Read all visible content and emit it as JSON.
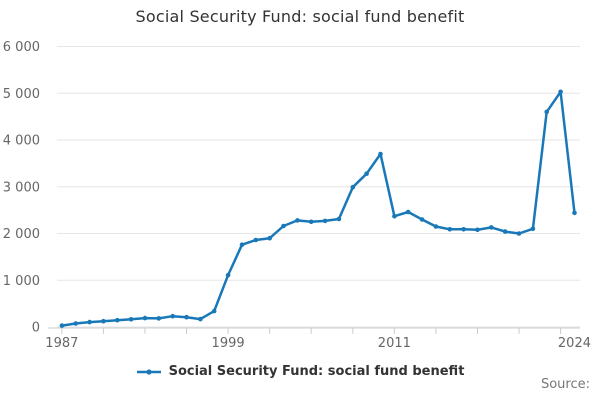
{
  "title": "Social Security Fund: social fund benefit",
  "legend": {
    "label": "Social Security Fund: social fund benefit"
  },
  "source_label": "Source:",
  "colors": {
    "series": "#1878b8",
    "grid": "#e6e6e6",
    "axis": "#c9cdd3",
    "title_text": "#333333",
    "axis_text": "#666666",
    "source_text": "#777777",
    "background": "#ffffff"
  },
  "chart_data": {
    "type": "line",
    "title": "Social Security Fund: social fund benefit",
    "series_name": "Social Security Fund: social fund benefit",
    "x": [
      1987,
      1988,
      1989,
      1990,
      1991,
      1992,
      1993,
      1994,
      1995,
      1996,
      1997,
      1998,
      1999,
      2000,
      2001,
      2002,
      2003,
      2004,
      2005,
      2006,
      2007,
      2008,
      2009,
      2010,
      2011,
      2012,
      2013,
      2014,
      2015,
      2016,
      2017,
      2018,
      2019,
      2020,
      2021,
      2022,
      2023,
      2024
    ],
    "values": [
      30,
      75,
      105,
      125,
      145,
      165,
      190,
      185,
      230,
      210,
      170,
      340,
      1110,
      1760,
      1860,
      1900,
      2160,
      2280,
      2250,
      2270,
      2310,
      2990,
      3280,
      3700,
      2370,
      2460,
      2300,
      2150,
      2090,
      2090,
      2080,
      2130,
      2040,
      2000,
      2100,
      4600,
      5030,
      2440
    ],
    "xlabel": "",
    "ylabel": "",
    "ylim": [
      0,
      6000
    ],
    "xlim": [
      1986,
      2024.4
    ],
    "y_ticks": [
      0,
      1000,
      2000,
      3000,
      4000,
      5000,
      6000
    ],
    "y_tick_labels": [
      "0",
      "1 000",
      "2 000",
      "3 000",
      "4 000",
      "5 000",
      "6 000"
    ],
    "x_minor_tick_years": [
      1987,
      1990,
      1993,
      1996,
      1999,
      2002,
      2005,
      2008,
      2011,
      2014,
      2017,
      2020,
      2023
    ],
    "x_tick_labels": [
      {
        "year": 1987,
        "label": "1987"
      },
      {
        "year": 1999,
        "label": "1999"
      },
      {
        "year": 2011,
        "label": "2011"
      },
      {
        "year": 2024,
        "label": "2024"
      }
    ],
    "grid": "horizontal",
    "legend_position": "bottom",
    "markers": true
  }
}
